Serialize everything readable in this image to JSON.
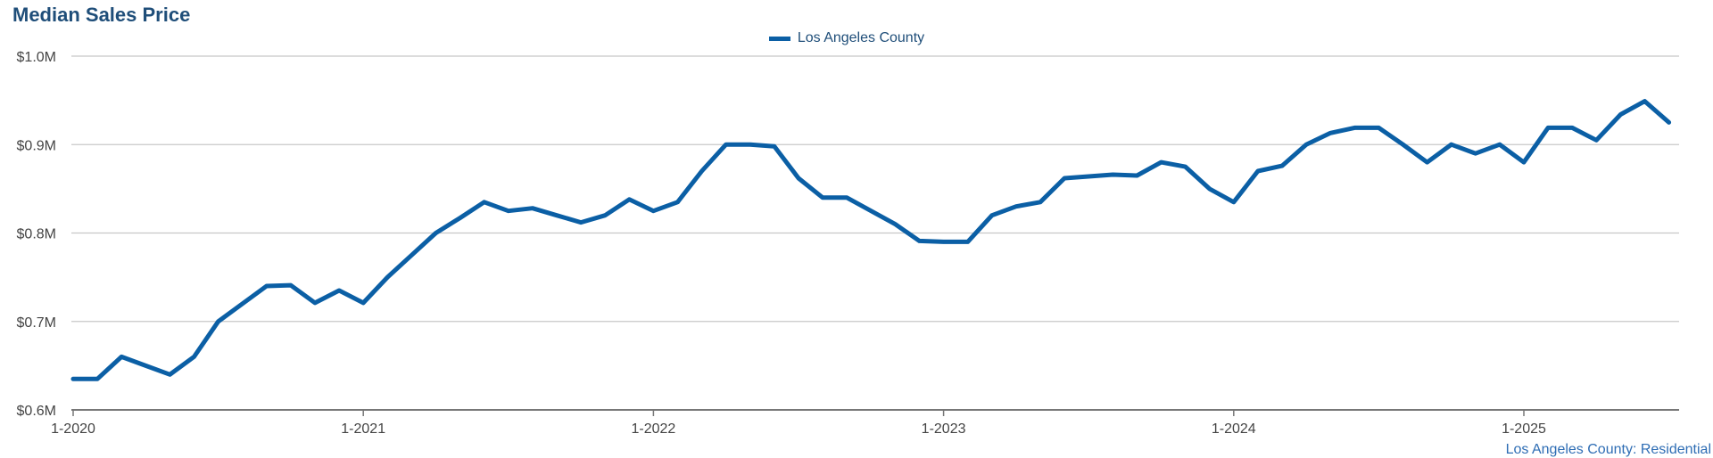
{
  "chart_data": {
    "type": "line",
    "title": "Median Sales Price",
    "source_note": "Los Angeles County: Residential",
    "xlabel": "",
    "ylabel": "",
    "ylim": [
      0.6,
      1.0
    ],
    "y_ticks": [
      {
        "value": 0.6,
        "label": "$0.6M"
      },
      {
        "value": 0.7,
        "label": "$0.7M"
      },
      {
        "value": 0.8,
        "label": "$0.8M"
      },
      {
        "value": 0.9,
        "label": "$0.9M"
      },
      {
        "value": 1.0,
        "label": "$1.0M"
      }
    ],
    "x_ticks": [
      "1-2020",
      "1-2021",
      "1-2022",
      "1-2023",
      "1-2024",
      "1-2025"
    ],
    "grid": true,
    "legend_position": "top-center",
    "colors": {
      "series": "#0b5fa5",
      "title": "#1f4e79",
      "grid": "#c8c8c8",
      "axis": "#777777"
    },
    "series": [
      {
        "name": "Los Angeles County",
        "x": [
          "2020-01",
          "2020-02",
          "2020-03",
          "2020-04",
          "2020-05",
          "2020-06",
          "2020-07",
          "2020-08",
          "2020-09",
          "2020-10",
          "2020-11",
          "2020-12",
          "2021-01",
          "2021-02",
          "2021-03",
          "2021-04",
          "2021-05",
          "2021-06",
          "2021-07",
          "2021-08",
          "2021-09",
          "2021-10",
          "2021-11",
          "2021-12",
          "2022-01",
          "2022-02",
          "2022-03",
          "2022-04",
          "2022-05",
          "2022-06",
          "2022-07",
          "2022-08",
          "2022-09",
          "2022-10",
          "2022-11",
          "2022-12",
          "2023-01",
          "2023-02",
          "2023-03",
          "2023-04",
          "2023-05",
          "2023-06",
          "2023-07",
          "2023-08",
          "2023-09",
          "2023-10",
          "2023-11",
          "2023-12",
          "2024-01",
          "2024-02",
          "2024-03",
          "2024-04",
          "2024-05",
          "2024-06",
          "2024-07",
          "2024-08",
          "2024-09",
          "2024-10",
          "2024-11",
          "2024-12",
          "2025-01",
          "2025-02",
          "2025-03",
          "2025-04",
          "2025-05",
          "2025-06",
          "2025-07"
        ],
        "values": [
          0.635,
          0.635,
          0.66,
          0.65,
          0.64,
          0.66,
          0.7,
          0.72,
          0.74,
          0.741,
          0.721,
          0.735,
          0.721,
          0.75,
          0.775,
          0.8,
          0.817,
          0.835,
          0.825,
          0.828,
          0.82,
          0.812,
          0.82,
          0.838,
          0.825,
          0.835,
          0.87,
          0.9,
          0.9,
          0.898,
          0.862,
          0.84,
          0.84,
          0.825,
          0.81,
          0.791,
          0.79,
          0.79,
          0.82,
          0.83,
          0.835,
          0.862,
          0.864,
          0.866,
          0.865,
          0.88,
          0.875,
          0.85,
          0.835,
          0.87,
          0.876,
          0.9,
          0.913,
          0.919,
          0.919,
          0.9,
          0.88,
          0.9,
          0.89,
          0.9,
          0.88,
          0.919,
          0.919,
          0.905,
          0.934,
          0.949,
          0.925
        ]
      }
    ]
  }
}
